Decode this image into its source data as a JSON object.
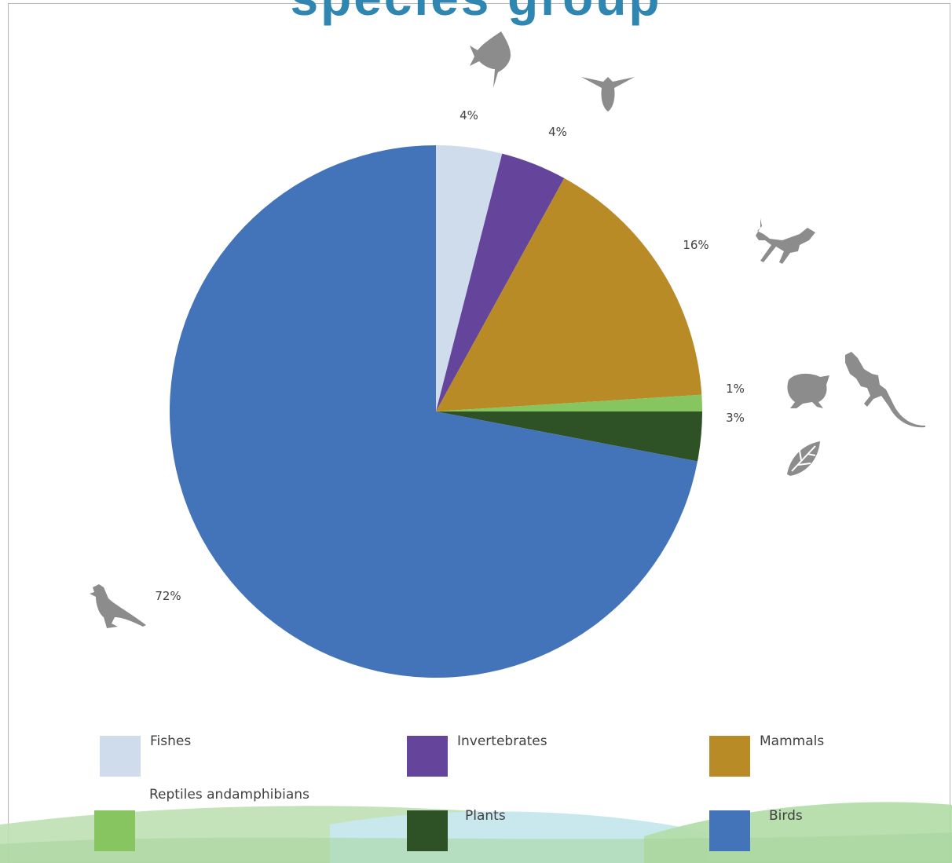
{
  "chart_data": {
    "type": "pie",
    "title": "species group",
    "start_angle_deg": 0,
    "direction": "clockwise",
    "slices": [
      {
        "label": "Fishes",
        "value": 4,
        "value_label": "4%",
        "color": "#cfdcec",
        "icon": "fish-icon"
      },
      {
        "label": "Invertebrates",
        "value": 4,
        "value_label": "4%",
        "color": "#65459c",
        "icon": "insect-icon"
      },
      {
        "label": "Mammals",
        "value": 16,
        "value_label": "16%",
        "color": "#b98b27",
        "icon": "deer-icon"
      },
      {
        "label": "Reptiles andamphibians",
        "value": 1,
        "value_label": "1%",
        "color": "#86c560",
        "icon": "frog-lizard-icon"
      },
      {
        "label": "Plants",
        "value": 3,
        "value_label": "3%",
        "color": "#2e5125",
        "icon": "leaf-icon"
      },
      {
        "label": "Birds",
        "value": 72,
        "value_label": "72%",
        "color": "#4373b8",
        "icon": "bird-icon"
      }
    ],
    "legend_position": "bottom"
  },
  "colors": {
    "title": "#2f86b0",
    "icon": "#8c8c8c",
    "wave_green": "#b8dcae",
    "wave_blue": "#c8e8ee"
  }
}
